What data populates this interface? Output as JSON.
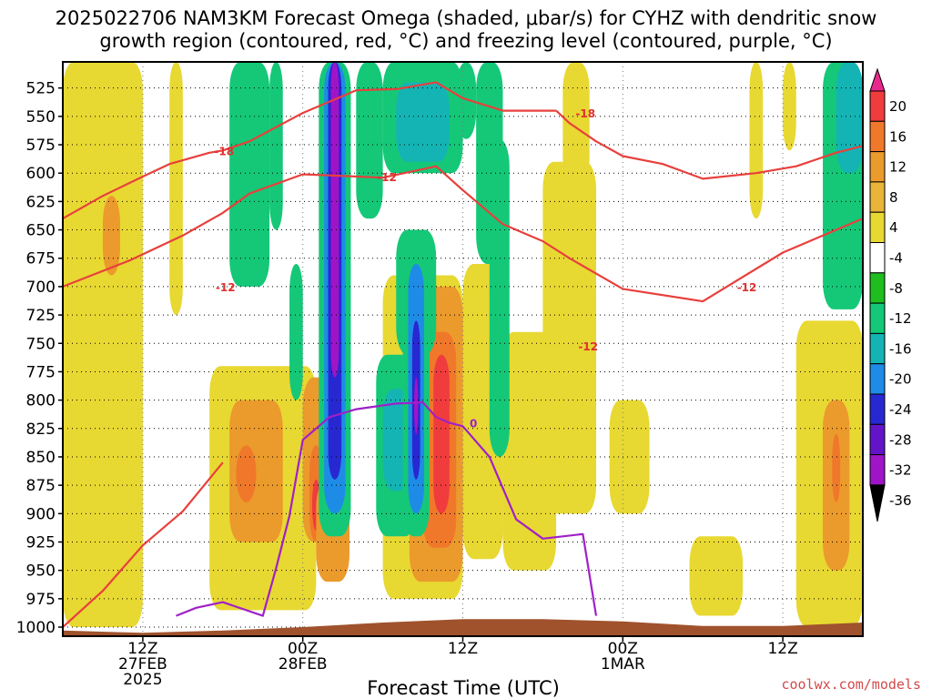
{
  "chart_data": {
    "type": "heatmap",
    "title_line1": "2025022706 NAM3KM Forecast Omega (shaded, μbar/s) for CYHZ with dendritic snow",
    "title_line2": "growth region (contoured, red, °C) and freezing level (contoured, purple, °C)",
    "xlabel": "Forecast Time (UTC)",
    "credit": "coolwx.com/models",
    "x_range_hours": [
      0,
      60
    ],
    "x_ticks": [
      {
        "hour": 6,
        "l1": "12Z",
        "l2": "27FEB",
        "l3": "2025"
      },
      {
        "hour": 18,
        "l1": "00Z",
        "l2": "28FEB",
        "l3": ""
      },
      {
        "hour": 30,
        "l1": "12Z",
        "l2": "",
        "l3": ""
      },
      {
        "hour": 42,
        "l1": "00Z",
        "l2": "1MAR",
        "l3": ""
      },
      {
        "hour": 54,
        "l1": "12Z",
        "l2": "",
        "l3": ""
      }
    ],
    "y_range_hpa": [
      1008,
      502
    ],
    "y_ticks": [
      "525",
      "550",
      "575",
      "600",
      "625",
      "650",
      "675",
      "700",
      "725",
      "750",
      "775",
      "800",
      "825",
      "850",
      "875",
      "900",
      "925",
      "950",
      "975",
      "1000"
    ],
    "colorbar": {
      "labels": [
        "20",
        "16",
        "12",
        "8",
        "4",
        "-4",
        "-8",
        "-12",
        "-16",
        "-20",
        "-24",
        "-28",
        "-32",
        "-36"
      ],
      "colors": [
        "#e8288c",
        "#f03c3c",
        "#f0782a",
        "#eb9a2c",
        "#e8b43a",
        "#e8d832",
        "#ffffff",
        "#1ebe1e",
        "#14c878",
        "#14b4b4",
        "#1e8ce6",
        "#2828d2",
        "#6414c8",
        "#a014c8",
        "#b4b4b4"
      ]
    },
    "omega_blobs": [
      {
        "t0": 0,
        "t1": 6,
        "p0": 502,
        "p1": 1000,
        "v": 6
      },
      {
        "t0": 8,
        "t1": 9,
        "p0": 502,
        "p1": 725,
        "v": 6
      },
      {
        "t0": 3,
        "t1": 5,
        "p0": 700,
        "p1": 925,
        "v": 6
      },
      {
        "t0": 3,
        "t1": 4.3,
        "p0": 620,
        "p1": 690,
        "v": 8
      },
      {
        "t0": 11,
        "t1": 19,
        "p0": 770,
        "p1": 985,
        "v": 6
      },
      {
        "t0": 12.5,
        "t1": 16.5,
        "p0": 800,
        "p1": 925,
        "v": 10
      },
      {
        "t0": 13,
        "t1": 14.5,
        "p0": 840,
        "p1": 890,
        "v": 14
      },
      {
        "t0": 18,
        "t1": 20,
        "p0": 780,
        "p1": 925,
        "v": 10
      },
      {
        "t0": 18.5,
        "t1": 19.5,
        "p0": 840,
        "p1": 925,
        "v": 14
      },
      {
        "t0": 18.7,
        "t1": 19.3,
        "p0": 870,
        "p1": 915,
        "v": 18
      },
      {
        "t0": 19,
        "t1": 21.5,
        "p0": 870,
        "p1": 960,
        "v": 10
      },
      {
        "t0": 24,
        "t1": 30,
        "p0": 690,
        "p1": 975,
        "v": 6
      },
      {
        "t0": 26,
        "t1": 30,
        "p0": 700,
        "p1": 960,
        "v": 10
      },
      {
        "t0": 27,
        "t1": 29.5,
        "p0": 740,
        "p1": 930,
        "v": 14
      },
      {
        "t0": 27.8,
        "t1": 29,
        "p0": 760,
        "p1": 900,
        "v": 18
      },
      {
        "t0": 30,
        "t1": 33,
        "p0": 680,
        "p1": 940,
        "v": 6
      },
      {
        "t0": 33,
        "t1": 37,
        "p0": 740,
        "p1": 950,
        "v": 6
      },
      {
        "t0": 36,
        "t1": 40,
        "p0": 590,
        "p1": 900,
        "v": 6
      },
      {
        "t0": 37.5,
        "t1": 39.5,
        "p0": 502,
        "p1": 610,
        "v": 6
      },
      {
        "t0": 41,
        "t1": 44,
        "p0": 800,
        "p1": 900,
        "v": 6
      },
      {
        "t0": 47,
        "t1": 51,
        "p0": 920,
        "p1": 990,
        "v": 6
      },
      {
        "t0": 55,
        "t1": 60,
        "p0": 730,
        "p1": 1000,
        "v": 6
      },
      {
        "t0": 57,
        "t1": 59,
        "p0": 800,
        "p1": 950,
        "v": 10
      },
      {
        "t0": 57.7,
        "t1": 58.3,
        "p0": 830,
        "p1": 890,
        "v": 14
      },
      {
        "t0": 51.5,
        "t1": 52.5,
        "p0": 502,
        "p1": 640,
        "v": 6
      },
      {
        "t0": 54,
        "t1": 55,
        "p0": 502,
        "p1": 580,
        "v": 6
      },
      {
        "t0": 12.5,
        "t1": 15.5,
        "p0": 502,
        "p1": 700,
        "v": -8
      },
      {
        "t0": 15.5,
        "t1": 16.5,
        "p0": 502,
        "p1": 650,
        "v": -8
      },
      {
        "t0": 17,
        "t1": 18,
        "p0": 680,
        "p1": 800,
        "v": -8
      },
      {
        "t0": 19.2,
        "t1": 21.6,
        "p0": 502,
        "p1": 920,
        "v": -8
      },
      {
        "t0": 19.6,
        "t1": 21.2,
        "p0": 502,
        "p1": 900,
        "v": -16
      },
      {
        "t0": 19.9,
        "t1": 20.9,
        "p0": 502,
        "p1": 870,
        "v": -22
      },
      {
        "t0": 20.1,
        "t1": 20.7,
        "p0": 502,
        "p1": 780,
        "v": -30
      },
      {
        "t0": 22,
        "t1": 24,
        "p0": 502,
        "p1": 640,
        "v": -8
      },
      {
        "t0": 24,
        "t1": 30,
        "p0": 502,
        "p1": 600,
        "v": -8
      },
      {
        "t0": 25,
        "t1": 29,
        "p0": 520,
        "p1": 590,
        "v": -12
      },
      {
        "t0": 25,
        "t1": 28,
        "p0": 650,
        "p1": 760,
        "v": -8
      },
      {
        "t0": 23.5,
        "t1": 26.5,
        "p0": 760,
        "p1": 920,
        "v": -8
      },
      {
        "t0": 24,
        "t1": 26,
        "p0": 790,
        "p1": 880,
        "v": -12
      },
      {
        "t0": 25.5,
        "t1": 27.5,
        "p0": 650,
        "p1": 920,
        "v": -8
      },
      {
        "t0": 25.9,
        "t1": 27.1,
        "p0": 680,
        "p1": 900,
        "v": -16
      },
      {
        "t0": 26.2,
        "t1": 26.8,
        "p0": 730,
        "p1": 870,
        "v": -22
      },
      {
        "t0": 26.35,
        "t1": 26.65,
        "p0": 780,
        "p1": 830,
        "v": -30
      },
      {
        "t0": 31,
        "t1": 33,
        "p0": 502,
        "p1": 680,
        "v": -8
      },
      {
        "t0": 32,
        "t1": 33.5,
        "p0": 570,
        "p1": 850,
        "v": -8
      },
      {
        "t0": 29.5,
        "t1": 31,
        "p0": 502,
        "p1": 570,
        "v": -8
      },
      {
        "t0": 57,
        "t1": 60,
        "p0": 502,
        "p1": 720,
        "v": -8
      },
      {
        "t0": 58,
        "t1": 60,
        "p0": 502,
        "p1": 600,
        "v": -12
      }
    ],
    "ground_profile": [
      [
        0,
        1003
      ],
      [
        6,
        1005
      ],
      [
        12,
        1003
      ],
      [
        18,
        1000
      ],
      [
        24,
        996
      ],
      [
        30,
        993
      ],
      [
        36,
        993
      ],
      [
        42,
        995
      ],
      [
        48,
        999
      ],
      [
        54,
        999
      ],
      [
        60,
        996
      ]
    ],
    "isotherm_minus12_a": [
      [
        0,
        1000
      ],
      [
        3,
        968
      ],
      [
        6,
        928
      ],
      [
        9,
        898
      ],
      [
        12,
        855
      ]
    ],
    "isotherm_minus12_b": [
      [
        0,
        700
      ],
      [
        5,
        677
      ],
      [
        9,
        655
      ],
      [
        12,
        635
      ],
      [
        14,
        618
      ],
      [
        18,
        601
      ],
      [
        24,
        604
      ],
      [
        28,
        594
      ],
      [
        30,
        615
      ],
      [
        33,
        645
      ],
      [
        36,
        660
      ],
      [
        38,
        675
      ],
      [
        42,
        702
      ],
      [
        48,
        713
      ],
      [
        54,
        670
      ],
      [
        60,
        640
      ]
    ],
    "isotherm_minus12_c": [
      [
        12,
        580
      ],
      [
        14,
        572
      ],
      [
        18,
        547
      ],
      [
        22,
        527
      ],
      [
        25,
        526
      ],
      [
        28,
        520
      ],
      [
        30,
        534
      ],
      [
        33,
        545
      ],
      [
        37,
        545
      ]
    ],
    "isotherm_minus18_a": [
      [
        0,
        640
      ],
      [
        3,
        620
      ],
      [
        6,
        603
      ],
      [
        8,
        592
      ],
      [
        11,
        582
      ],
      [
        12,
        580
      ]
    ],
    "isotherm_minus18_b": [
      [
        37,
        545
      ],
      [
        38,
        556
      ],
      [
        40,
        572
      ],
      [
        42,
        585
      ],
      [
        45,
        592
      ],
      [
        48,
        605
      ],
      [
        52,
        600
      ],
      [
        55,
        594
      ],
      [
        58,
        582
      ],
      [
        60,
        576
      ]
    ],
    "freezing_level": [
      [
        8.5,
        990
      ],
      [
        10,
        983
      ],
      [
        12,
        978
      ],
      [
        15,
        990
      ],
      [
        16,
        948
      ],
      [
        17,
        902
      ],
      [
        18,
        835
      ],
      [
        20,
        815
      ],
      [
        22,
        808
      ],
      [
        25,
        803
      ],
      [
        27,
        802
      ],
      [
        28,
        815
      ],
      [
        29,
        820
      ],
      [
        30,
        823
      ],
      [
        32,
        850
      ],
      [
        34,
        905
      ],
      [
        36,
        922
      ],
      [
        39,
        918
      ],
      [
        40,
        990
      ]
    ],
    "contour_labels": [
      {
        "t": 12.1,
        "p": 580,
        "text": "-18",
        "color": "#e03030"
      },
      {
        "t": 24.3,
        "p": 603,
        "text": "-12",
        "color": "#e03030"
      },
      {
        "t": 12.2,
        "p": 700,
        "text": "-12",
        "color": "#e03030"
      },
      {
        "t": 39.2,
        "p": 547,
        "text": "-18",
        "color": "#e03030"
      },
      {
        "t": 39.4,
        "p": 752,
        "text": "-12",
        "color": "#e03030"
      },
      {
        "t": 51.3,
        "p": 700,
        "text": "-12",
        "color": "#e03030"
      },
      {
        "t": 30.8,
        "p": 820,
        "text": "0",
        "color": "#a020c8"
      }
    ]
  }
}
